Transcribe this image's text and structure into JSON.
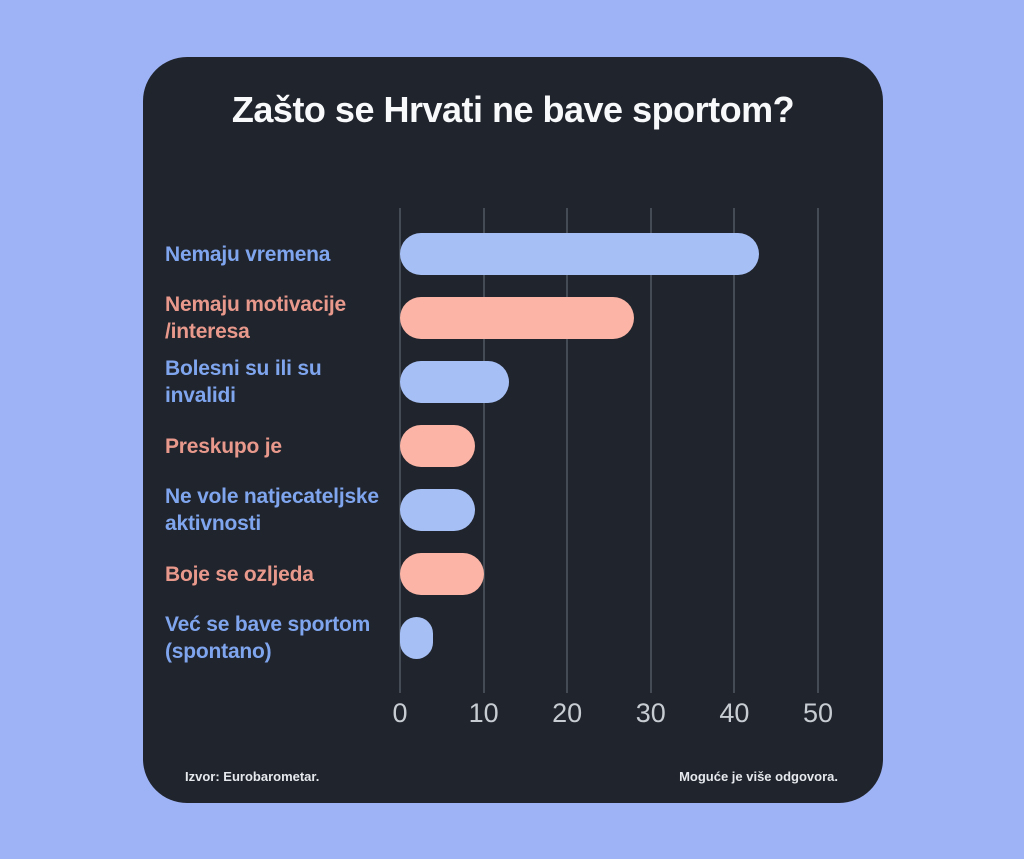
{
  "title": "Zašto se Hrvati ne bave sportom?",
  "footer": {
    "source": "Izvor: Eurobarometar.",
    "note": "Moguće je više odgovora."
  },
  "colors": {
    "page_background": "#9db3f5",
    "card_background": "#20242c",
    "bar_blue": "#a6c0f6",
    "bar_salmon": "#fbb4a5",
    "label_blue": "#7fa5ee",
    "label_salmon": "#e9998c",
    "gridline": "#454b54",
    "tick_text": "#c7ccd3",
    "title_text": "#f8f9fb",
    "footer_text": "#e6e9ed"
  },
  "chart_data": {
    "type": "bar",
    "orientation": "horizontal",
    "title": "Zašto se Hrvati ne bave sportom?",
    "categories": [
      "Nemaju vremena",
      "Nemaju motivacije /interesa",
      "Bolesni su ili su invalidi",
      "Preskupo je",
      "Ne vole natjecateljske aktivnosti",
      "Boje se ozljeda",
      "Već se bave sportom (spontano)"
    ],
    "label_lines": [
      [
        "Nemaju vremena"
      ],
      [
        "Nemaju motivacije",
        "/interesa"
      ],
      [
        "Bolesni su ili su",
        "invalidi"
      ],
      [
        "Preskupo je"
      ],
      [
        "Ne vole natjecateljske",
        "aktivnosti"
      ],
      [
        "Boje se ozljeda"
      ],
      [
        "Već se bave sportom",
        "(spontano)"
      ]
    ],
    "values": [
      43,
      28,
      13,
      9,
      9,
      10,
      4
    ],
    "bar_colors": [
      "blue",
      "salmon",
      "blue",
      "salmon",
      "blue",
      "salmon",
      "blue"
    ],
    "x_ticks": [
      0,
      10,
      20,
      30,
      40,
      50
    ],
    "xlim": [
      0,
      50
    ],
    "grid": true,
    "legend": false,
    "source": "Izvor: Eurobarometar.",
    "note": "Moguće je više odgovora."
  }
}
